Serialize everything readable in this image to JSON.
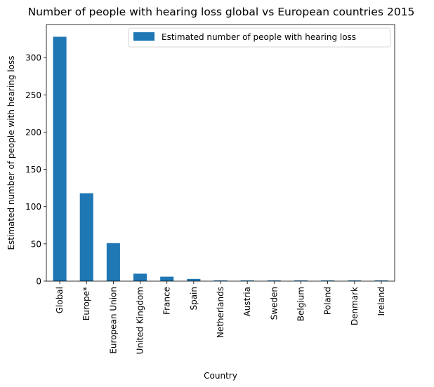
{
  "chart_data": {
    "type": "bar",
    "title": "Number of people with hearing loss global vs European countries 2015",
    "xlabel": "Country",
    "ylabel": "Estimated number of people with hearing loss",
    "categories": [
      "Global",
      "Europe*",
      "European Union",
      "United Kingdom",
      "France",
      "Spain",
      "Netherlands",
      "Austria",
      "Sweden",
      "Belgium",
      "Poland",
      "Denmark",
      "Ireland"
    ],
    "series": [
      {
        "name": "Estimated number of people with hearing loss",
        "color": "#1f77b4",
        "values": [
          328,
          118,
          51,
          10,
          6,
          3,
          1,
          1,
          1,
          1,
          1,
          1,
          1
        ]
      }
    ],
    "ylim": [
      0,
      344.4
    ],
    "yticks": [
      0,
      50,
      100,
      150,
      200,
      250,
      300
    ],
    "grid": false,
    "legend_position": "top-right"
  }
}
